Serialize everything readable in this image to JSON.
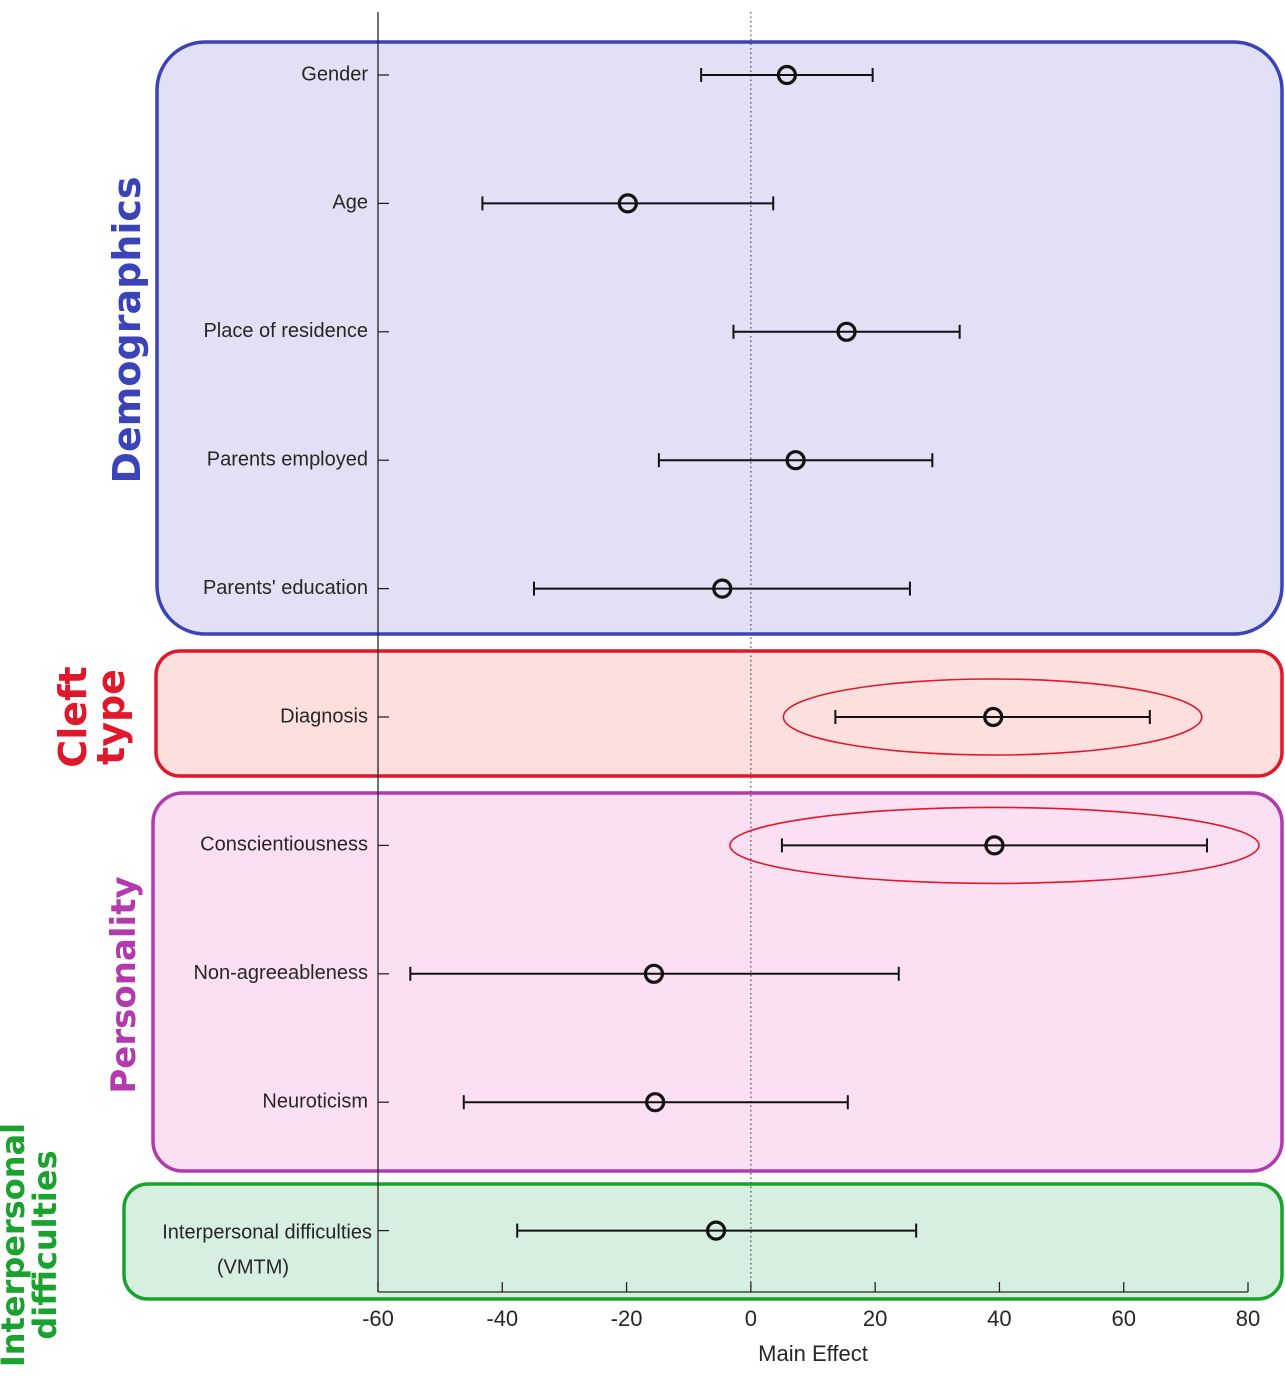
{
  "chart_data": {
    "type": "scatter",
    "subtype": "forest-plot",
    "xlabel": "Main Effect",
    "xlim": [
      -60,
      80
    ],
    "xticks": [
      -60,
      -40,
      -20,
      0,
      20,
      40,
      60,
      80
    ],
    "reference_line_x": 0,
    "groups": [
      {
        "name": "Demographics",
        "lines": [
          "Demographics"
        ],
        "color": "#3a43b8",
        "fill": "#e1e0f4",
        "items": [
          {
            "label": [
              "Gender"
            ],
            "estimate": 5.8,
            "lower": -8,
            "upper": 19.6,
            "highlight": false
          },
          {
            "label": [
              "Age"
            ],
            "estimate": -19.8,
            "lower": -43.2,
            "upper": 3.6,
            "highlight": false
          },
          {
            "label": [
              "Place of residence"
            ],
            "estimate": 15.4,
            "lower": -2.8,
            "upper": 33.6,
            "highlight": false
          },
          {
            "label": [
              "Parents employed"
            ],
            "estimate": 7.2,
            "lower": -14.8,
            "upper": 29.2,
            "highlight": false
          },
          {
            "label": [
              "Parents' education"
            ],
            "estimate": -4.6,
            "lower": -34.9,
            "upper": 25.6,
            "highlight": false
          }
        ]
      },
      {
        "name": "Cleft type",
        "lines": [
          "Cleft",
          "type"
        ],
        "color": "#e0182c",
        "fill": "#fde0de",
        "items": [
          {
            "label": [
              "Diagnosis"
            ],
            "estimate": 39.0,
            "lower": 13.6,
            "upper": 64.2,
            "highlight": true
          }
        ]
      },
      {
        "name": "Personality",
        "lines": [
          "Personality"
        ],
        "color": "#b23aac",
        "fill": "#fbe0f4",
        "items": [
          {
            "label": [
              "Conscientiousness"
            ],
            "estimate": 39.2,
            "lower": 5.0,
            "upper": 73.4,
            "highlight": true
          },
          {
            "label": [
              "Non-agreeableness"
            ],
            "estimate": -15.6,
            "lower": -54.8,
            "upper": 23.8,
            "highlight": false
          },
          {
            "label": [
              "Neuroticism"
            ],
            "estimate": -15.4,
            "lower": -46.2,
            "upper": 15.6,
            "highlight": false
          }
        ]
      },
      {
        "name": "Interpersonal difficulties",
        "lines": [
          "Interpersonal",
          "difficulties"
        ],
        "color": "#1aa12e",
        "fill": "#d6efde",
        "items": [
          {
            "label": [
              "Interpersonal difficulties",
              "(VMTM)"
            ],
            "estimate": -5.6,
            "lower": -37.6,
            "upper": 26.6,
            "highlight": false
          }
        ]
      }
    ]
  },
  "colors": {
    "axis": "#262626",
    "marker": "#111111",
    "highlight_ellipse": "#e0182c",
    "text": "#262626"
  }
}
